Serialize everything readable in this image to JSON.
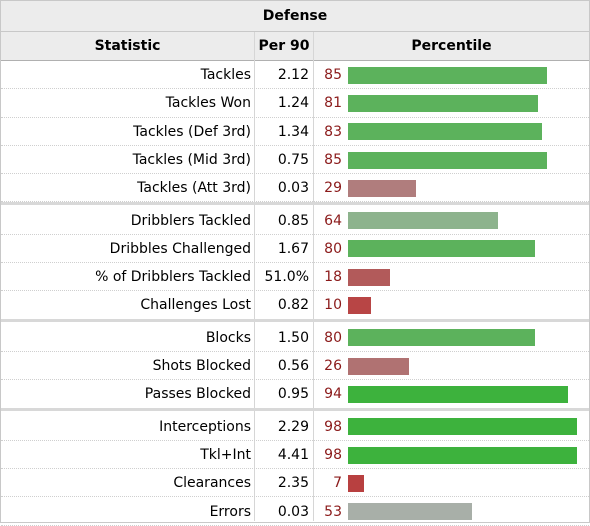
{
  "table": {
    "title": "Defense",
    "headers": [
      "Statistic",
      "Per 90",
      "Percentile"
    ],
    "groups": [
      [
        {
          "stat": "Tackles",
          "per90": "2.12",
          "percentile": 85,
          "color": "#5cb25c"
        },
        {
          "stat": "Tackles Won",
          "per90": "1.24",
          "percentile": 81,
          "color": "#5cb25c"
        },
        {
          "stat": "Tackles (Def 3rd)",
          "per90": "1.34",
          "percentile": 83,
          "color": "#5cb25c"
        },
        {
          "stat": "Tackles (Mid 3rd)",
          "per90": "0.75",
          "percentile": 85,
          "color": "#5cb25c"
        },
        {
          "stat": "Tackles (Att 3rd)",
          "per90": "0.03",
          "percentile": 29,
          "color": "#b07d7d"
        }
      ],
      [
        {
          "stat": "Dribblers Tackled",
          "per90": "0.85",
          "percentile": 64,
          "color": "#8db38d"
        },
        {
          "stat": "Dribbles Challenged",
          "per90": "1.67",
          "percentile": 80,
          "color": "#5cb25c"
        },
        {
          "stat": "% of Dribblers Tackled",
          "per90": "51.0%",
          "percentile": 18,
          "color": "#b25a5a"
        },
        {
          "stat": "Challenges Lost",
          "per90": "0.82",
          "percentile": 10,
          "color": "#b84545"
        }
      ],
      [
        {
          "stat": "Blocks",
          "per90": "1.50",
          "percentile": 80,
          "color": "#5cb25c"
        },
        {
          "stat": "Shots Blocked",
          "per90": "0.56",
          "percentile": 26,
          "color": "#b07272"
        },
        {
          "stat": "Passes Blocked",
          "per90": "0.95",
          "percentile": 94,
          "color": "#3db23d"
        }
      ],
      [
        {
          "stat": "Interceptions",
          "per90": "2.29",
          "percentile": 98,
          "color": "#3db23d"
        },
        {
          "stat": "Tkl+Int",
          "per90": "4.41",
          "percentile": 98,
          "color": "#3db23d"
        },
        {
          "stat": "Clearances",
          "per90": "2.35",
          "percentile": 7,
          "color": "#b84040"
        },
        {
          "stat": "Errors",
          "per90": "0.03",
          "percentile": 53,
          "color": "#a8afa8"
        }
      ]
    ]
  },
  "chart_data": {
    "type": "bar",
    "title": "Defense",
    "xlabel": "Percentile",
    "xlim": [
      0,
      100
    ],
    "categories": [
      "Tackles",
      "Tackles Won",
      "Tackles (Def 3rd)",
      "Tackles (Mid 3rd)",
      "Tackles (Att 3rd)",
      "Dribblers Tackled",
      "Dribbles Challenged",
      "% of Dribblers Tackled",
      "Challenges Lost",
      "Blocks",
      "Shots Blocked",
      "Passes Blocked",
      "Interceptions",
      "Tkl+Int",
      "Clearances",
      "Errors"
    ],
    "values": [
      85,
      81,
      83,
      85,
      29,
      64,
      80,
      18,
      10,
      80,
      26,
      94,
      98,
      98,
      7,
      53
    ]
  }
}
